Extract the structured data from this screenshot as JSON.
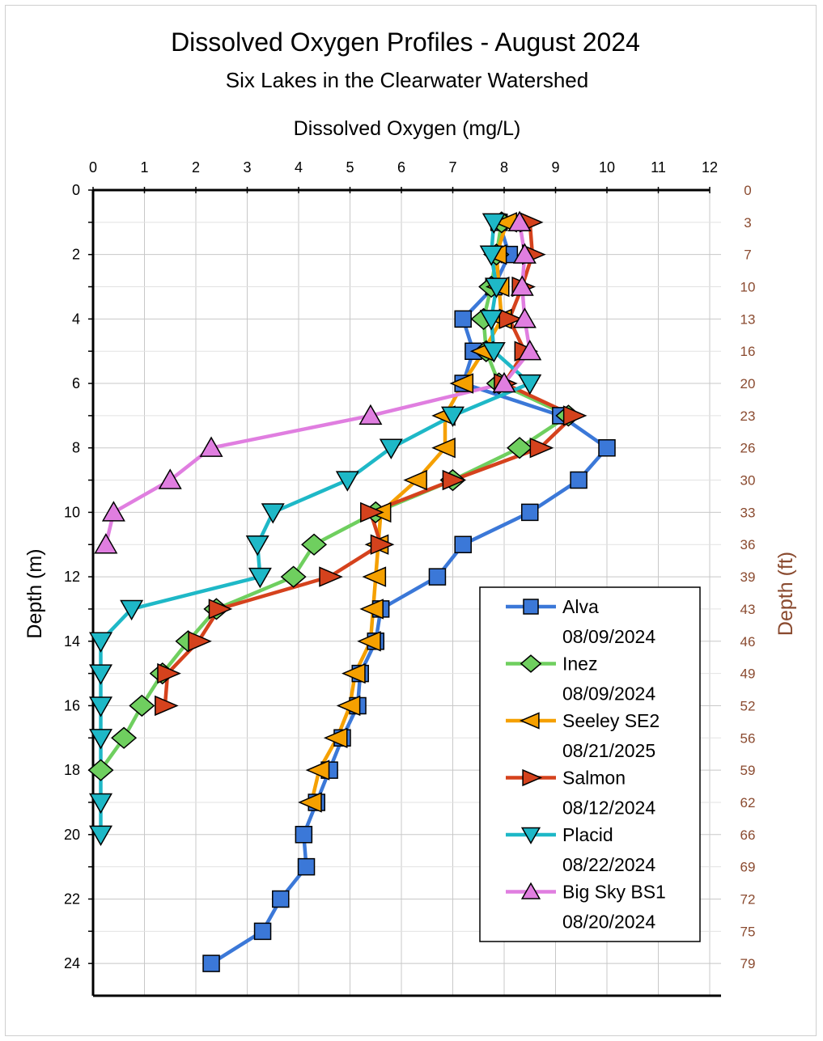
{
  "chart_data": {
    "type": "line",
    "title": "Dissolved Oxygen Profiles - August 2024",
    "subtitle": "Six Lakes in the Clearwater Watershed",
    "xlabel": "Dissolved Oxygen (mg/L)",
    "ylabel": "Depth (m)",
    "y2label": "Depth (ft)",
    "xlim": [
      0,
      12
    ],
    "ylim": [
      0,
      25
    ],
    "y_inverted": true,
    "x_ticks": [
      0,
      1,
      2,
      3,
      4,
      5,
      6,
      7,
      8,
      9,
      10,
      11,
      12
    ],
    "y_ticks": [
      0,
      2,
      4,
      6,
      8,
      10,
      12,
      14,
      16,
      18,
      20,
      22,
      24
    ],
    "y2_ticks": [
      {
        "m": 0,
        "label": "0"
      },
      {
        "m": 1,
        "label": "3"
      },
      {
        "m": 2,
        "label": "7"
      },
      {
        "m": 3,
        "label": "10"
      },
      {
        "m": 4,
        "label": "13"
      },
      {
        "m": 5,
        "label": "16"
      },
      {
        "m": 6,
        "label": "20"
      },
      {
        "m": 7,
        "label": "23"
      },
      {
        "m": 8,
        "label": "26"
      },
      {
        "m": 9,
        "label": "30"
      },
      {
        "m": 10,
        "label": "33"
      },
      {
        "m": 11,
        "label": "36"
      },
      {
        "m": 12,
        "label": "39"
      },
      {
        "m": 13,
        "label": "43"
      },
      {
        "m": 14,
        "label": "46"
      },
      {
        "m": 15,
        "label": "49"
      },
      {
        "m": 16,
        "label": "52"
      },
      {
        "m": 17,
        "label": "56"
      },
      {
        "m": 18,
        "label": "59"
      },
      {
        "m": 19,
        "label": "62"
      },
      {
        "m": 20,
        "label": "66"
      },
      {
        "m": 21,
        "label": "69"
      },
      {
        "m": 22,
        "label": "72"
      },
      {
        "m": 23,
        "label": "75"
      },
      {
        "m": 24,
        "label": "79"
      }
    ],
    "grid": true,
    "legend_position": "bottom-right",
    "series": [
      {
        "name": "Alva",
        "date": "08/09/2024",
        "color": "#3b78d8",
        "marker": "square",
        "points": [
          [
            7.9,
            1
          ],
          [
            8.1,
            2
          ],
          [
            7.8,
            3
          ],
          [
            7.2,
            4
          ],
          [
            7.4,
            5
          ],
          [
            7.2,
            6
          ],
          [
            9.1,
            7
          ],
          [
            10.0,
            8
          ],
          [
            9.45,
            9
          ],
          [
            8.5,
            10
          ],
          [
            7.2,
            11
          ],
          [
            6.7,
            12
          ],
          [
            5.6,
            13
          ],
          [
            5.5,
            14
          ],
          [
            5.2,
            15
          ],
          [
            5.15,
            16
          ],
          [
            4.85,
            17
          ],
          [
            4.6,
            18
          ],
          [
            4.35,
            19
          ],
          [
            4.1,
            20
          ],
          [
            4.15,
            21
          ],
          [
            3.65,
            22
          ],
          [
            3.3,
            23
          ],
          [
            2.3,
            24
          ]
        ]
      },
      {
        "name": "Inez",
        "date": "08/09/2024",
        "color": "#6fcf5f",
        "marker": "diamond",
        "points": [
          [
            7.95,
            1
          ],
          [
            7.85,
            2
          ],
          [
            7.75,
            3
          ],
          [
            7.6,
            4
          ],
          [
            7.65,
            5
          ],
          [
            7.9,
            6
          ],
          [
            9.25,
            7
          ],
          [
            8.3,
            8
          ],
          [
            7.0,
            9
          ],
          [
            5.5,
            10
          ],
          [
            4.3,
            11
          ],
          [
            3.9,
            12
          ],
          [
            2.4,
            13
          ],
          [
            1.85,
            14
          ],
          [
            1.35,
            15
          ],
          [
            0.95,
            16
          ],
          [
            0.6,
            17
          ],
          [
            0.15,
            18
          ]
        ]
      },
      {
        "name": "Seeley SE2",
        "date": "08/21/2025",
        "color": "#f5a000",
        "marker": "triangle-left",
        "points": [
          [
            8.05,
            1
          ],
          [
            7.85,
            2
          ],
          [
            7.9,
            3
          ],
          [
            7.95,
            4
          ],
          [
            7.6,
            5
          ],
          [
            7.2,
            6
          ],
          [
            6.85,
            7
          ],
          [
            6.85,
            8
          ],
          [
            6.3,
            9
          ],
          [
            5.6,
            10
          ],
          [
            5.55,
            11
          ],
          [
            5.5,
            12
          ],
          [
            5.45,
            13
          ],
          [
            5.4,
            14
          ],
          [
            5.1,
            15
          ],
          [
            5.0,
            16
          ],
          [
            4.75,
            17
          ],
          [
            4.4,
            18
          ],
          [
            4.25,
            19
          ]
        ]
      },
      {
        "name": "Salmon",
        "date": "08/12/2024",
        "color": "#d5421d",
        "marker": "triangle-right",
        "points": [
          [
            8.5,
            1
          ],
          [
            8.55,
            2
          ],
          [
            8.35,
            3
          ],
          [
            8.1,
            4
          ],
          [
            8.4,
            5
          ],
          [
            8.0,
            6
          ],
          [
            9.35,
            7
          ],
          [
            8.7,
            8
          ],
          [
            7.0,
            9
          ],
          [
            5.4,
            10
          ],
          [
            5.6,
            11
          ],
          [
            4.6,
            12
          ],
          [
            2.45,
            13
          ],
          [
            2.05,
            14
          ],
          [
            1.45,
            15
          ],
          [
            1.4,
            16
          ]
        ]
      },
      {
        "name": "Placid",
        "date": "08/22/2024",
        "color": "#1eb8c7",
        "marker": "triangle-down",
        "points": [
          [
            7.8,
            1
          ],
          [
            7.75,
            2
          ],
          [
            7.85,
            3
          ],
          [
            7.75,
            4
          ],
          [
            7.8,
            5
          ],
          [
            8.5,
            6
          ],
          [
            7.0,
            7
          ],
          [
            5.8,
            8
          ],
          [
            4.95,
            9
          ],
          [
            3.5,
            10
          ],
          [
            3.2,
            11
          ],
          [
            3.25,
            12
          ],
          [
            0.75,
            13
          ],
          [
            0.15,
            14
          ],
          [
            0.15,
            15
          ],
          [
            0.15,
            16
          ],
          [
            0.15,
            17
          ],
          [
            0.15,
            19
          ],
          [
            0.15,
            20
          ]
        ]
      },
      {
        "name": "Big Sky BS1",
        "date": "08/20/2024",
        "color": "#e07ee0",
        "marker": "triangle-up",
        "points": [
          [
            8.3,
            1
          ],
          [
            8.4,
            2
          ],
          [
            8.35,
            3
          ],
          [
            8.4,
            4
          ],
          [
            8.5,
            5
          ],
          [
            8.0,
            6
          ],
          [
            5.4,
            7
          ],
          [
            2.3,
            8
          ],
          [
            1.5,
            9
          ],
          [
            0.4,
            10
          ],
          [
            0.25,
            11
          ]
        ]
      }
    ]
  }
}
